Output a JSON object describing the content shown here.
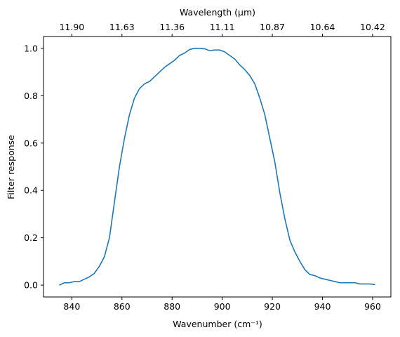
{
  "chart_data": {
    "type": "line",
    "x_label": "Wavenumber (cm⁻¹)",
    "y_label": "Filter response",
    "x2_label": "Wavelength (μm)",
    "x": [
      835,
      837,
      839,
      841,
      843,
      845,
      847,
      849,
      851,
      853,
      855,
      857,
      859,
      861,
      863,
      865,
      867,
      869,
      871,
      873,
      875,
      877,
      879,
      881,
      883,
      885,
      887,
      889,
      891,
      893,
      895,
      897,
      899,
      901,
      903,
      905,
      907,
      909,
      911,
      913,
      915,
      917,
      919,
      921,
      923,
      925,
      927,
      929,
      931,
      933,
      935,
      937,
      939,
      941,
      943,
      945,
      947,
      949,
      951,
      953,
      955,
      957,
      959,
      961
    ],
    "series": [
      {
        "color": "#1f77b4",
        "values": [
          0.0,
          0.01,
          0.01,
          0.015,
          0.015,
          0.025,
          0.035,
          0.05,
          0.08,
          0.12,
          0.2,
          0.35,
          0.5,
          0.62,
          0.72,
          0.79,
          0.83,
          0.85,
          0.86,
          0.88,
          0.9,
          0.92,
          0.935,
          0.95,
          0.97,
          0.98,
          0.995,
          1.0,
          1.0,
          0.998,
          0.99,
          0.993,
          0.993,
          0.985,
          0.97,
          0.955,
          0.93,
          0.91,
          0.885,
          0.85,
          0.79,
          0.72,
          0.62,
          0.52,
          0.39,
          0.28,
          0.19,
          0.14,
          0.1,
          0.065,
          0.045,
          0.04,
          0.03,
          0.025,
          0.02,
          0.015,
          0.01,
          0.01,
          0.01,
          0.01,
          0.005,
          0.005,
          0.005,
          0.002
        ]
      }
    ],
    "xlim": [
      828.7,
      967.3
    ],
    "ylim": [
      -0.05,
      1.05
    ],
    "xticks": [
      840,
      860,
      880,
      900,
      920,
      940,
      960
    ],
    "x2ticks": [
      {
        "value": 840,
        "label": "11.90"
      },
      {
        "value": 860,
        "label": "11.63"
      },
      {
        "value": 880,
        "label": "11.36"
      },
      {
        "value": 900,
        "label": "11.11"
      },
      {
        "value": 920,
        "label": "10.87"
      },
      {
        "value": 940,
        "label": "10.64"
      },
      {
        "value": 960,
        "label": "10.42"
      }
    ],
    "yticks": [
      {
        "value": 0,
        "label": "0.0"
      },
      0.2,
      0.4,
      0.6,
      0.8,
      {
        "value": 1,
        "label": "1.0"
      }
    ]
  }
}
